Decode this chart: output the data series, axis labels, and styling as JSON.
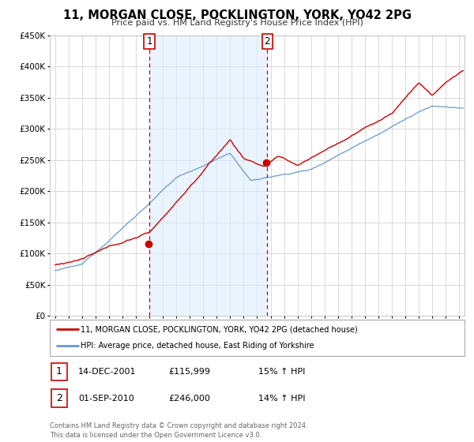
{
  "title": "11, MORGAN CLOSE, POCKLINGTON, YORK, YO42 2PG",
  "subtitle": "Price paid vs. HM Land Registry's House Price Index (HPI)",
  "legend_line1": "11, MORGAN CLOSE, POCKLINGTON, YORK, YO42 2PG (detached house)",
  "legend_line2": "HPI: Average price, detached house, East Riding of Yorkshire",
  "note": "Contains HM Land Registry data © Crown copyright and database right 2024.\nThis data is licensed under the Open Government Licence v3.0.",
  "sale1_label": "1",
  "sale1_date": "14-DEC-2001",
  "sale1_price": "£115,999",
  "sale1_hpi": "15% ↑ HPI",
  "sale2_label": "2",
  "sale2_date": "01-SEP-2010",
  "sale2_price": "£246,000",
  "sale2_hpi": "14% ↑ HPI",
  "sale1_year": 2001.95,
  "sale1_value": 115999,
  "sale2_year": 2010.67,
  "sale2_value": 246000,
  "vline1_year": 2002.0,
  "vline2_year": 2010.75,
  "ylim": [
    0,
    450000
  ],
  "xlim_start": 1994.6,
  "xlim_end": 2025.4,
  "price_color": "#cc0000",
  "hpi_color": "#6699cc",
  "hpi_fill_color": "#ddeeff",
  "vline_color": "#cc0000",
  "shade_color": "#ddeeff",
  "background_color": "#ffffff",
  "grid_color": "#cccccc"
}
